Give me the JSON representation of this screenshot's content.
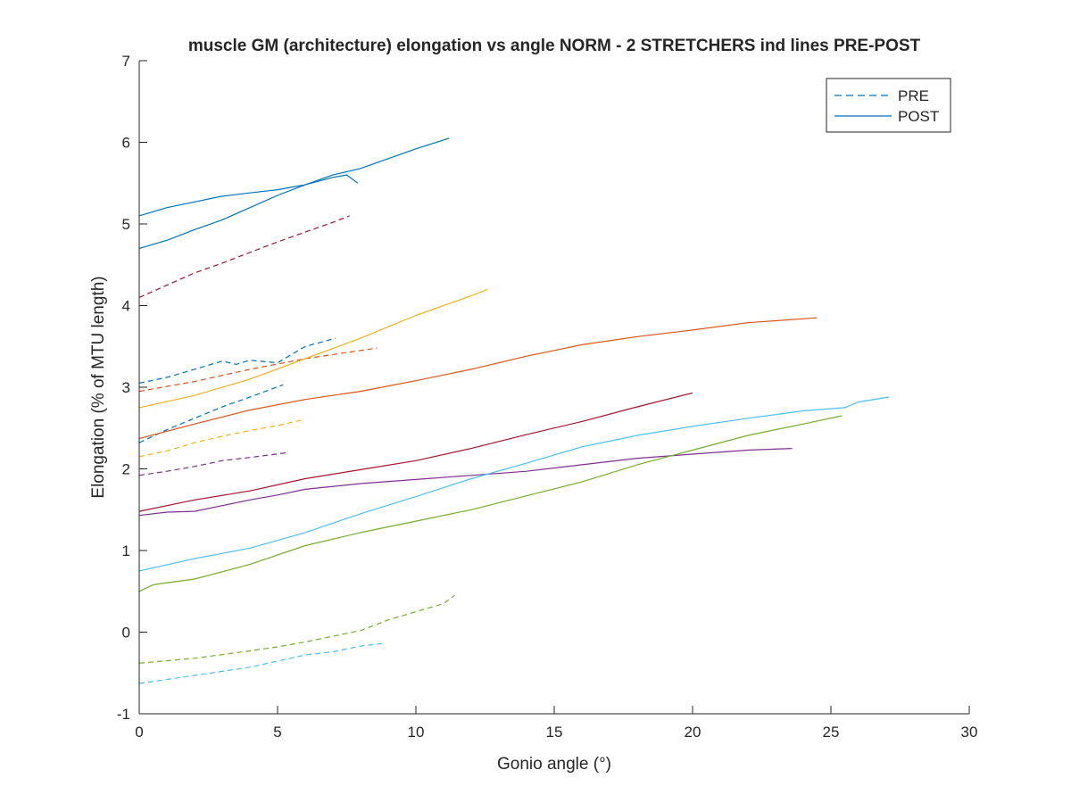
{
  "chart_data": {
    "type": "line",
    "title": "muscle GM (architecture) elongation vs angle NORM - 2 STRETCHERS ind lines PRE-POST",
    "xlabel": "Gonio angle (°)",
    "ylabel": "Elongation (% of MTU length)",
    "xlim": [
      0,
      30
    ],
    "ylim": [
      -1,
      7
    ],
    "xticks": [
      "0",
      "5",
      "10",
      "15",
      "20",
      "25",
      "30"
    ],
    "yticks": [
      "-1",
      "0",
      "1",
      "2",
      "3",
      "4",
      "5",
      "6",
      "7"
    ],
    "grid": false,
    "legend": {
      "position": "top-right",
      "entries": [
        {
          "label": "PRE",
          "style": "dashed",
          "color": "#0072BD"
        },
        {
          "label": "POST",
          "style": "solid",
          "color": "#0072BD"
        }
      ]
    },
    "series": [
      {
        "condition": "PRE",
        "color": "#0072BD",
        "x": [
          0,
          1,
          2,
          3,
          3.5,
          4,
          5,
          5.5,
          6,
          7.1
        ],
        "y": [
          3.05,
          3.12,
          3.22,
          3.32,
          3.28,
          3.33,
          3.3,
          3.4,
          3.5,
          3.6
        ]
      },
      {
        "condition": "PRE",
        "color": "#0072BD",
        "x": [
          0,
          1,
          2,
          3,
          4,
          5.2
        ],
        "y": [
          2.32,
          2.48,
          2.62,
          2.76,
          2.88,
          3.03
        ]
      },
      {
        "condition": "POST",
        "color": "#0072BD",
        "x": [
          0,
          1,
          2,
          3,
          4,
          5,
          6,
          7,
          7.5,
          7.9
        ],
        "y": [
          5.1,
          5.2,
          5.27,
          5.34,
          5.38,
          5.42,
          5.48,
          5.57,
          5.6,
          5.5
        ]
      },
      {
        "condition": "POST",
        "color": "#0072BD",
        "x": [
          0,
          1,
          2,
          3,
          4,
          5,
          6,
          7,
          8,
          9,
          10,
          11.2
        ],
        "y": [
          4.7,
          4.8,
          4.93,
          5.05,
          5.2,
          5.35,
          5.48,
          5.6,
          5.68,
          5.8,
          5.92,
          6.05
        ]
      },
      {
        "condition": "PRE",
        "color": "#D95319",
        "x": [
          0,
          2,
          4,
          6,
          8,
          8.6
        ],
        "y": [
          2.95,
          3.07,
          3.22,
          3.35,
          3.45,
          3.48
        ]
      },
      {
        "condition": "POST",
        "color": "#D95319",
        "x": [
          0,
          2,
          4,
          6,
          8,
          10,
          12,
          14,
          15,
          16,
          18,
          20,
          22,
          24.5
        ],
        "y": [
          2.37,
          2.55,
          2.72,
          2.85,
          2.95,
          3.08,
          3.22,
          3.38,
          3.45,
          3.52,
          3.62,
          3.7,
          3.79,
          3.85
        ]
      },
      {
        "condition": "PRE",
        "color": "#EDB120",
        "x": [
          0,
          1,
          2,
          3,
          4,
          5,
          5.9
        ],
        "y": [
          2.15,
          2.22,
          2.32,
          2.4,
          2.47,
          2.53,
          2.6
        ]
      },
      {
        "condition": "POST",
        "color": "#EDB120",
        "x": [
          0,
          2,
          4,
          6,
          8,
          10,
          12,
          12.6
        ],
        "y": [
          2.75,
          2.9,
          3.1,
          3.35,
          3.6,
          3.88,
          4.12,
          4.2
        ]
      },
      {
        "condition": "PRE",
        "color": "#7E2F8E",
        "x": [
          0,
          1,
          2,
          3,
          4,
          5.4
        ],
        "y": [
          1.92,
          1.97,
          2.03,
          2.1,
          2.14,
          2.2
        ]
      },
      {
        "condition": "POST",
        "color": "#7E2F8E",
        "x": [
          0,
          1,
          2,
          3,
          4,
          5,
          6,
          8,
          10,
          12,
          14,
          16,
          18,
          20,
          22,
          23.6
        ],
        "y": [
          1.43,
          1.47,
          1.48,
          1.55,
          1.62,
          1.68,
          1.75,
          1.82,
          1.87,
          1.92,
          1.97,
          2.05,
          2.13,
          2.18,
          2.23,
          2.25
        ]
      },
      {
        "condition": "PRE",
        "color": "#77AC30",
        "x": [
          0,
          2,
          4,
          5,
          6,
          7,
          8,
          9,
          10,
          11,
          11.4
        ],
        "y": [
          -0.38,
          -0.32,
          -0.23,
          -0.18,
          -0.12,
          -0.05,
          0.02,
          0.15,
          0.25,
          0.35,
          0.45
        ]
      },
      {
        "condition": "POST",
        "color": "#77AC30",
        "x": [
          0,
          0.5,
          2,
          4,
          6,
          8,
          10,
          12,
          14,
          16,
          18,
          20,
          22,
          24,
          25.4
        ],
        "y": [
          0.5,
          0.58,
          0.65,
          0.83,
          1.06,
          1.22,
          1.36,
          1.5,
          1.67,
          1.84,
          2.05,
          2.23,
          2.41,
          2.55,
          2.65
        ]
      },
      {
        "condition": "PRE",
        "color": "#4DBEEE",
        "x": [
          0,
          2,
          4,
          6,
          7,
          8,
          8.8
        ],
        "y": [
          -0.63,
          -0.53,
          -0.43,
          -0.28,
          -0.24,
          -0.17,
          -0.14
        ]
      },
      {
        "condition": "POST",
        "color": "#4DBEEE",
        "x": [
          0,
          2,
          4,
          6,
          8,
          10,
          12,
          14,
          16,
          18,
          20,
          22,
          24,
          25.5,
          26,
          27.1
        ],
        "y": [
          0.75,
          0.9,
          1.03,
          1.22,
          1.45,
          1.66,
          1.88,
          2.07,
          2.27,
          2.41,
          2.52,
          2.62,
          2.71,
          2.75,
          2.82,
          2.88
        ]
      },
      {
        "condition": "POST",
        "color": "#A2142F",
        "x": [
          0,
          2,
          4,
          6,
          8,
          10,
          12,
          14,
          16,
          18,
          20
        ],
        "y": [
          1.48,
          1.62,
          1.73,
          1.88,
          1.99,
          2.1,
          2.25,
          2.42,
          2.58,
          2.76,
          2.93
        ]
      },
      {
        "condition": "PRE",
        "color": "#A2142F",
        "x": [
          0,
          1,
          2,
          3,
          4,
          5,
          6,
          7,
          7.6
        ],
        "y": [
          4.1,
          4.25,
          4.4,
          4.52,
          4.65,
          4.78,
          4.9,
          5.02,
          5.1
        ]
      }
    ]
  }
}
